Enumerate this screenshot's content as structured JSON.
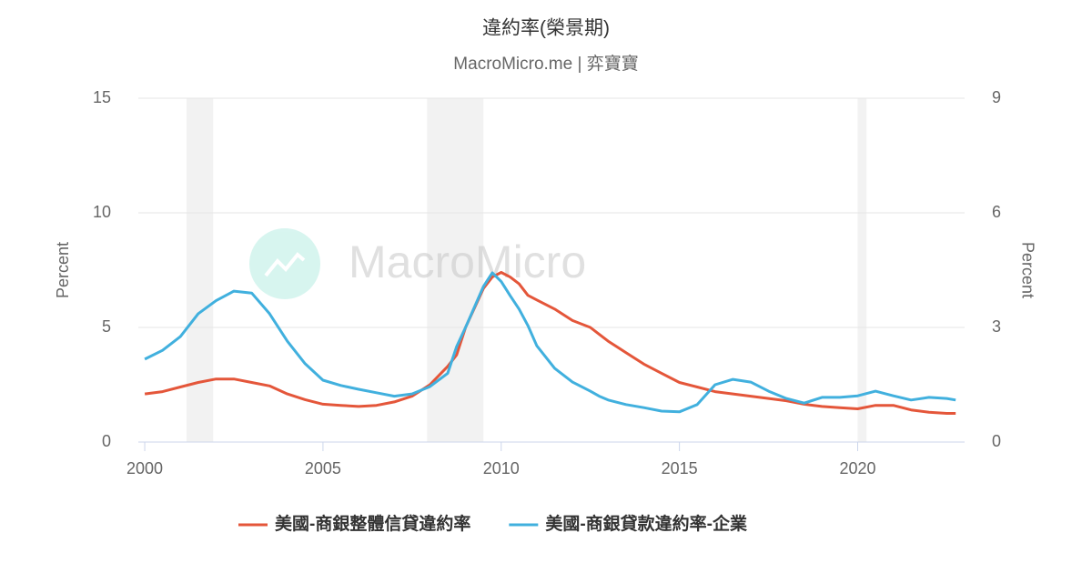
{
  "chart_data": {
    "type": "line",
    "title": "違約率(榮景期)",
    "subtitle": "MacroMicro.me | 弈寶寶",
    "watermark": "MacroMicro",
    "y_label": "Percent",
    "y2_label": "Percent",
    "x": [
      2000,
      2000.5,
      2001,
      2001.5,
      2002,
      2002.5,
      2003,
      2003.5,
      2004,
      2004.5,
      2005,
      2005.5,
      2006,
      2006.5,
      2007,
      2007.5,
      2008,
      2008.5,
      2008.75,
      2009,
      2009.5,
      2009.75,
      2010,
      2010.25,
      2010.5,
      2010.75,
      2011,
      2011.5,
      2012,
      2012.5,
      2012.75,
      2013,
      2013.5,
      2014,
      2014.5,
      2015,
      2015.5,
      2016,
      2016.5,
      2017,
      2017.5,
      2018,
      2018.5,
      2019,
      2019.5,
      2020,
      2020.5,
      2021,
      2021.5,
      2022,
      2022.5,
      2022.75
    ],
    "series": [
      {
        "name": "美國-商銀整體信貸違約率",
        "color": "#e4563a",
        "axis": "y",
        "values": [
          2.1,
          2.2,
          2.4,
          2.6,
          2.75,
          2.75,
          2.6,
          2.45,
          2.1,
          1.85,
          1.65,
          1.6,
          1.55,
          1.6,
          1.75,
          2.0,
          2.5,
          3.3,
          3.8,
          5.0,
          6.7,
          7.2,
          7.4,
          7.2,
          6.9,
          6.4,
          6.2,
          5.8,
          5.3,
          5.0,
          4.7,
          4.4,
          3.9,
          3.4,
          3.0,
          2.6,
          2.4,
          2.2,
          2.1,
          2.0,
          1.9,
          1.8,
          1.65,
          1.55,
          1.5,
          1.45,
          1.6,
          1.6,
          1.4,
          1.3,
          1.25,
          1.25
        ]
      },
      {
        "name": "美國-商銀貸款違約率-企業",
        "color": "#41b0de",
        "axis": "y2",
        "values": [
          2.17,
          2.4,
          2.76,
          3.36,
          3.7,
          3.95,
          3.9,
          3.36,
          2.64,
          2.05,
          1.62,
          1.48,
          1.38,
          1.29,
          1.2,
          1.26,
          1.45,
          1.8,
          2.5,
          3.0,
          4.07,
          4.43,
          4.2,
          3.83,
          3.48,
          3.05,
          2.52,
          1.93,
          1.57,
          1.33,
          1.2,
          1.1,
          0.98,
          0.9,
          0.81,
          0.79,
          0.98,
          1.5,
          1.64,
          1.57,
          1.33,
          1.14,
          1.02,
          1.17,
          1.17,
          1.21,
          1.33,
          1.21,
          1.1,
          1.17,
          1.14,
          1.1
        ]
      }
    ],
    "shaded_periods": [
      [
        2001.17,
        2001.92
      ],
      [
        2007.92,
        2009.5
      ],
      [
        2020.0,
        2020.25
      ]
    ],
    "shade_color": "#f2f2f2",
    "xlim": [
      1999.82,
      2023.0
    ],
    "xticks": [
      2000,
      2005,
      2010,
      2015,
      2020
    ],
    "ylim": [
      0,
      15
    ],
    "yticks": [
      0,
      5,
      10,
      15
    ],
    "y2lim": [
      0,
      9
    ],
    "y2ticks": [
      0,
      3,
      6,
      9
    ],
    "grid": true
  }
}
